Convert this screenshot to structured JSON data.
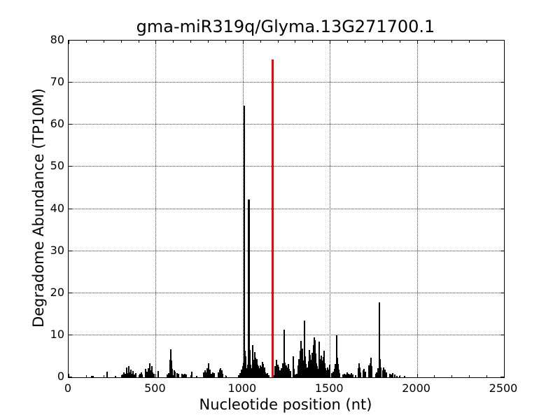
{
  "figure": {
    "title": "gma-miR319q/Glyma.13G271700.1",
    "xlabel": "Nucleotide position (nt)",
    "ylabel": "Degradome Abundance (TP10M)"
  },
  "chart_data": {
    "type": "bar",
    "title": "gma-miR319q/Glyma.13G271700.1",
    "xlabel": "Nucleotide position (nt)",
    "ylabel": "Degradome Abundance (TP10M)",
    "xlim": [
      0,
      2500
    ],
    "ylim": [
      0,
      80
    ],
    "x_major_ticks": [
      0,
      500,
      1000,
      1500,
      2000,
      2500
    ],
    "x_minor_tick_interval": 100,
    "y_major_ticks": [
      0,
      10,
      20,
      30,
      40,
      50,
      60,
      70,
      80
    ],
    "grid": "dotted black gridlines at major ticks, both axes",
    "legend": "none",
    "bar_color": "#000000",
    "highlight_line": {
      "x": 1172,
      "height": 75.5,
      "color": "#ff0000",
      "meaning": "predicted miRNA cleavage site marker"
    },
    "spikes": [
      [
        133,
        0.4
      ],
      [
        141,
        0.3
      ],
      [
        221,
        1.4
      ],
      [
        268,
        0.3
      ],
      [
        310,
        0.6
      ],
      [
        318,
        1.2
      ],
      [
        326,
        0.8
      ],
      [
        334,
        2.3
      ],
      [
        340,
        1.0
      ],
      [
        346,
        2.6
      ],
      [
        352,
        1.1
      ],
      [
        358,
        1.8
      ],
      [
        364,
        0.8
      ],
      [
        370,
        1.5
      ],
      [
        378,
        0.7
      ],
      [
        386,
        1.0
      ],
      [
        410,
        0.8
      ],
      [
        416,
        1.1
      ],
      [
        422,
        0.7
      ],
      [
        442,
        2.0
      ],
      [
        450,
        1.3
      ],
      [
        458,
        2.2
      ],
      [
        466,
        3.4
      ],
      [
        472,
        1.6
      ],
      [
        478,
        2.7
      ],
      [
        484,
        1.2
      ],
      [
        490,
        0.8
      ],
      [
        516,
        1.5
      ],
      [
        565,
        0.7
      ],
      [
        573,
        1.0
      ],
      [
        583,
        4.2,
        3
      ],
      [
        587,
        6.6
      ],
      [
        591,
        4.0
      ],
      [
        595,
        2.0
      ],
      [
        605,
        1.6
      ],
      [
        611,
        1.3
      ],
      [
        623,
        1.0
      ],
      [
        631,
        0.8
      ],
      [
        650,
        0.8
      ],
      [
        658,
        0.6
      ],
      [
        666,
        0.9
      ],
      [
        674,
        0.6
      ],
      [
        708,
        1.3
      ],
      [
        736,
        0.4
      ],
      [
        776,
        1.2
      ],
      [
        782,
        1.7
      ],
      [
        790,
        1.1
      ],
      [
        796,
        2.2
      ],
      [
        804,
        3.3
      ],
      [
        809,
        1.5
      ],
      [
        813,
        1.9
      ],
      [
        820,
        0.9
      ],
      [
        826,
        1.2
      ],
      [
        836,
        1.0
      ],
      [
        860,
        1.2
      ],
      [
        868,
        1.8
      ],
      [
        874,
        2.1
      ],
      [
        880,
        1.6
      ],
      [
        886,
        0.9
      ],
      [
        906,
        0.4
      ],
      [
        978,
        0.5
      ],
      [
        986,
        1.0
      ],
      [
        994,
        1.9
      ],
      [
        999,
        2.6
      ],
      [
        1005,
        3.5
      ],
      [
        1009,
        64.5,
        2.5
      ],
      [
        1013,
        6.3
      ],
      [
        1017,
        5.0
      ],
      [
        1022,
        2.2
      ],
      [
        1027,
        3.0
      ],
      [
        1031,
        5.5
      ],
      [
        1036,
        42.2,
        3
      ],
      [
        1041,
        6.5
      ],
      [
        1046,
        3.0
      ],
      [
        1051,
        2.2
      ],
      [
        1057,
        7.6
      ],
      [
        1062,
        4.2
      ],
      [
        1070,
        6.0
      ],
      [
        1075,
        4.6
      ],
      [
        1080,
        4.4
      ],
      [
        1086,
        3.0
      ],
      [
        1091,
        2.6
      ],
      [
        1096,
        2.2
      ],
      [
        1101,
        2.8
      ],
      [
        1107,
        2.5
      ],
      [
        1112,
        3.7
      ],
      [
        1118,
        3.2
      ],
      [
        1124,
        2.4
      ],
      [
        1130,
        1.2
      ],
      [
        1137,
        0.9
      ],
      [
        1143,
        1.0
      ],
      [
        1151,
        0.5
      ],
      [
        1181,
        0.5
      ],
      [
        1187,
        2.6
      ],
      [
        1194,
        4.1
      ],
      [
        1200,
        3.0
      ],
      [
        1207,
        2.5
      ],
      [
        1214,
        1.6
      ],
      [
        1222,
        2.2
      ],
      [
        1228,
        3.3
      ],
      [
        1234,
        2.8
      ],
      [
        1238,
        11.3
      ],
      [
        1243,
        3.5
      ],
      [
        1250,
        2.9
      ],
      [
        1256,
        2.3
      ],
      [
        1262,
        3.1
      ],
      [
        1268,
        2.0
      ],
      [
        1274,
        1.5
      ],
      [
        1290,
        5.0
      ],
      [
        1296,
        2.0
      ],
      [
        1303,
        0.7
      ],
      [
        1311,
        0.9
      ],
      [
        1318,
        2.8
      ],
      [
        1322,
        4.4
      ],
      [
        1326,
        3.2
      ],
      [
        1331,
        6.3
      ],
      [
        1335,
        8.6
      ],
      [
        1340,
        5.2
      ],
      [
        1344,
        6.8
      ],
      [
        1349,
        4.0
      ],
      [
        1354,
        13.5
      ],
      [
        1359,
        5.0
      ],
      [
        1364,
        3.2
      ],
      [
        1371,
        2.4
      ],
      [
        1378,
        3.8
      ],
      [
        1383,
        6.5
      ],
      [
        1387,
        5.4
      ],
      [
        1391,
        4.2
      ],
      [
        1395,
        3.0
      ],
      [
        1399,
        5.8
      ],
      [
        1403,
        4.6
      ],
      [
        1407,
        7.7
      ],
      [
        1411,
        9.4
      ],
      [
        1415,
        8.8
      ],
      [
        1419,
        5.6
      ],
      [
        1423,
        3.4
      ],
      [
        1428,
        2.6
      ],
      [
        1433,
        2.0
      ],
      [
        1439,
        8.5
      ],
      [
        1443,
        4.4
      ],
      [
        1447,
        3.6
      ],
      [
        1451,
        5.2
      ],
      [
        1455,
        4.0
      ],
      [
        1459,
        3.0
      ],
      [
        1463,
        4.8
      ],
      [
        1467,
        6.4
      ],
      [
        1471,
        3.3
      ],
      [
        1475,
        2.2
      ],
      [
        1480,
        1.6
      ],
      [
        1487,
        2.4
      ],
      [
        1493,
        1.8
      ],
      [
        1499,
        3.0
      ],
      [
        1512,
        1.0
      ],
      [
        1520,
        1.4
      ],
      [
        1527,
        2.0
      ],
      [
        1533,
        3.1
      ],
      [
        1539,
        10.0
      ],
      [
        1543,
        4.6
      ],
      [
        1547,
        3.2
      ],
      [
        1551,
        1.8
      ],
      [
        1557,
        1.0
      ],
      [
        1576,
        0.6
      ],
      [
        1584,
        0.9
      ],
      [
        1592,
        0.7
      ],
      [
        1600,
        1.1
      ],
      [
        1608,
        0.8
      ],
      [
        1616,
        0.6
      ],
      [
        1624,
        1.0
      ],
      [
        1632,
        0.7
      ],
      [
        1648,
        0.5
      ],
      [
        1663,
        2.2
      ],
      [
        1667,
        3.4
      ],
      [
        1671,
        2.4
      ],
      [
        1678,
        1.2
      ],
      [
        1692,
        1.6
      ],
      [
        1698,
        2.0
      ],
      [
        1704,
        1.4
      ],
      [
        1725,
        2.8
      ],
      [
        1731,
        3.4
      ],
      [
        1736,
        4.6
      ],
      [
        1741,
        2.6
      ],
      [
        1763,
        0.8
      ],
      [
        1770,
        1.2
      ],
      [
        1778,
        2.2
      ],
      [
        1784,
        17.8
      ],
      [
        1789,
        4.4
      ],
      [
        1794,
        2.4
      ],
      [
        1804,
        1.6
      ],
      [
        1810,
        2.4
      ],
      [
        1816,
        1.8
      ],
      [
        1824,
        1.2
      ],
      [
        1845,
        0.9
      ],
      [
        1853,
        0.7
      ],
      [
        1861,
        1.0
      ],
      [
        1873,
        0.6
      ],
      [
        1885,
        0.4
      ],
      [
        1902,
        0.3
      ],
      [
        1928,
        0.4
      ]
    ]
  }
}
